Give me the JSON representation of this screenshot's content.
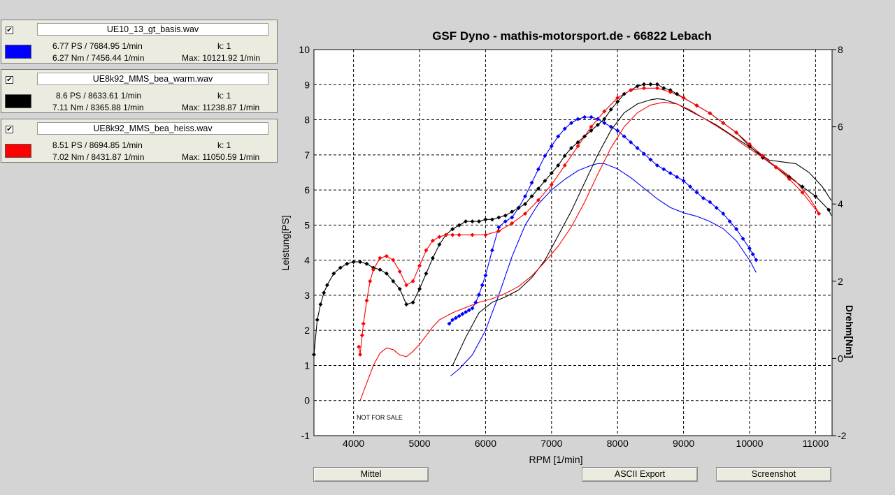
{
  "runs": [
    {
      "checked": true,
      "filename": "UE10_13_gt_basis.wav",
      "color": "#0000ff",
      "power": "6.77 PS / 7684.95 1/min",
      "torque": "6.27 Nm / 7456.44 1/min",
      "k": "k: 1",
      "max": "Max: 10121.92 1/min"
    },
    {
      "checked": true,
      "filename": "UE8k92_MMS_bea_warm.wav",
      "color": "#000000",
      "power": "8.6 PS / 8633.61 1/min",
      "torque": "7.11 Nm / 8365.88 1/min",
      "k": "k: 1",
      "max": "Max: 11238.87 1/min"
    },
    {
      "checked": true,
      "filename": "UE8k92_MMS_bea_heiss.wav",
      "color": "#ff0000",
      "power": "8.51 PS / 8694.85 1/min",
      "torque": "7.02 Nm / 8431.87 1/min",
      "k": "k: 1",
      "max": "Max: 11050.59 1/min"
    }
  ],
  "buttons": {
    "mittel": "Mittel",
    "ascii_export": "ASCII Export",
    "screenshot": "Screenshot"
  },
  "watermark": "NOT FOR SALE",
  "chart_data": {
    "type": "line",
    "title": "GSF Dyno - mathis-motorsport.de - 66822 Lebach",
    "xlabel": "RPM [1/min]",
    "ylabel": "Leistung[PS]",
    "y2label": "Drehm[Nm]",
    "xlim": [
      3400,
      11250
    ],
    "ylim": [
      -1,
      10
    ],
    "y2lim": [
      -2,
      8
    ],
    "x_ticks": [
      4000,
      5000,
      6000,
      7000,
      8000,
      9000,
      10000,
      11000
    ],
    "y_ticks": [
      -1,
      0,
      1,
      2,
      3,
      4,
      5,
      6,
      7,
      8,
      9,
      10
    ],
    "y2_ticks": [
      -2,
      0,
      2,
      4,
      6,
      8
    ],
    "y2_tick_labels": [
      "-2",
      "0",
      "2",
      "4",
      "6",
      "8"
    ],
    "grid": true,
    "series": [
      {
        "name": "UE10_13_gt_basis.wav",
        "quantity": "power",
        "axis": "y",
        "color": "#0000ff",
        "x": [
          5470,
          5600,
          5800,
          6000,
          6200,
          6400,
          6600,
          6800,
          7000,
          7200,
          7400,
          7600,
          7700,
          7800,
          8000,
          8200,
          8400,
          8600,
          8800,
          9000,
          9200,
          9400,
          9600,
          9800,
          10000,
          10100
        ],
        "y": [
          0.7,
          0.9,
          1.3,
          2.0,
          3.0,
          4.1,
          5.0,
          5.6,
          6.0,
          6.3,
          6.55,
          6.7,
          6.75,
          6.75,
          6.6,
          6.35,
          6.05,
          5.75,
          5.5,
          5.35,
          5.25,
          5.1,
          4.9,
          4.55,
          4.0,
          3.65
        ]
      },
      {
        "name": "UE10_13_gt_basis.wav",
        "quantity": "torque",
        "axis": "y2",
        "color": "#0000ff",
        "x": [
          5450,
          5500,
          5550,
          5600,
          5650,
          5700,
          5750,
          5800,
          5850,
          5900,
          5950,
          6000,
          6100,
          6200,
          6300,
          6400,
          6500,
          6600,
          6700,
          6800,
          6900,
          7000,
          7100,
          7200,
          7300,
          7400,
          7500,
          7600,
          7700,
          7800,
          7900,
          8000,
          8100,
          8200,
          8300,
          8400,
          8500,
          8600,
          8700,
          8800,
          8900,
          9000,
          9100,
          9200,
          9300,
          9400,
          9500,
          9600,
          9700,
          9800,
          9900,
          10000,
          10050,
          10100
        ],
        "y": [
          0.9,
          1.0,
          1.05,
          1.1,
          1.15,
          1.2,
          1.25,
          1.3,
          1.45,
          1.65,
          1.9,
          2.15,
          2.8,
          3.4,
          3.55,
          3.65,
          3.9,
          4.2,
          4.55,
          4.9,
          5.25,
          5.5,
          5.75,
          5.95,
          6.1,
          6.2,
          6.25,
          6.25,
          6.2,
          6.1,
          6.0,
          5.9,
          5.75,
          5.6,
          5.45,
          5.3,
          5.15,
          5.0,
          4.9,
          4.8,
          4.7,
          4.6,
          4.45,
          4.3,
          4.15,
          4.05,
          3.9,
          3.75,
          3.55,
          3.35,
          3.1,
          2.85,
          2.7,
          2.55
        ]
      },
      {
        "name": "UE8k92_MMS_bea_warm.wav",
        "quantity": "power",
        "axis": "y",
        "color": "#000000",
        "x": [
          5500,
          5700,
          5900,
          6100,
          6300,
          6500,
          6700,
          6900,
          7100,
          7300,
          7500,
          7700,
          7900,
          8100,
          8300,
          8500,
          8600,
          8700,
          8900,
          9100,
          9300,
          9500,
          9700,
          9900,
          10100,
          10300,
          10500,
          10700,
          10900,
          11100,
          11238
        ],
        "y": [
          1.0,
          1.8,
          2.5,
          2.8,
          2.95,
          3.15,
          3.5,
          4.0,
          4.7,
          5.4,
          6.2,
          7.0,
          7.7,
          8.2,
          8.45,
          8.57,
          8.6,
          8.58,
          8.45,
          8.25,
          8.05,
          7.85,
          7.6,
          7.35,
          7.1,
          6.85,
          6.8,
          6.75,
          6.5,
          6.1,
          5.7
        ]
      },
      {
        "name": "UE8k92_MMS_bea_warm.wav",
        "quantity": "torque",
        "axis": "y2",
        "color": "#000000",
        "x": [
          3400,
          3450,
          3500,
          3550,
          3600,
          3700,
          3800,
          3900,
          4000,
          4100,
          4200,
          4300,
          4400,
          4500,
          4600,
          4700,
          4800,
          4900,
          5000,
          5100,
          5200,
          5300,
          5400,
          5500,
          5600,
          5700,
          5800,
          5900,
          6000,
          6100,
          6200,
          6300,
          6400,
          6500,
          6600,
          6700,
          6800,
          6900,
          7000,
          7100,
          7200,
          7300,
          7400,
          7500,
          7600,
          7700,
          7800,
          7900,
          8000,
          8100,
          8200,
          8300,
          8400,
          8500,
          8600,
          8700,
          8800,
          8900,
          9000,
          9200,
          9400,
          9600,
          9800,
          10000,
          10200,
          10400,
          10600,
          10800,
          11000,
          11200,
          11238
        ],
        "y": [
          0.1,
          1.0,
          1.4,
          1.7,
          1.9,
          2.2,
          2.35,
          2.45,
          2.5,
          2.5,
          2.45,
          2.35,
          2.3,
          2.2,
          2.0,
          1.8,
          1.4,
          1.45,
          1.8,
          2.2,
          2.6,
          2.95,
          3.2,
          3.35,
          3.45,
          3.55,
          3.55,
          3.55,
          3.6,
          3.6,
          3.65,
          3.7,
          3.8,
          3.9,
          4.0,
          4.2,
          4.4,
          4.6,
          4.8,
          5.0,
          5.25,
          5.45,
          5.6,
          5.75,
          5.9,
          6.05,
          6.2,
          6.45,
          6.65,
          6.85,
          6.95,
          7.05,
          7.1,
          7.1,
          7.1,
          7.0,
          6.95,
          6.85,
          6.75,
          6.55,
          6.35,
          6.1,
          5.85,
          5.5,
          5.2,
          4.95,
          4.7,
          4.45,
          4.2,
          3.85,
          3.7
        ]
      },
      {
        "name": "UE8k92_MMS_bea_heiss.wav",
        "quantity": "power",
        "axis": "y",
        "color": "#ff0000",
        "x": [
          4100,
          4200,
          4300,
          4400,
          4500,
          4600,
          4700,
          4800,
          4900,
          5000,
          5100,
          5200,
          5300,
          5500,
          5700,
          5900,
          6100,
          6300,
          6500,
          6700,
          6900,
          7100,
          7300,
          7500,
          7700,
          7900,
          8100,
          8300,
          8500,
          8700,
          8900,
          9100,
          9300,
          9500,
          9700,
          9900,
          10100,
          10300,
          10500,
          10700,
          10900,
          11050
        ],
        "y": [
          0.0,
          0.5,
          1.0,
          1.35,
          1.5,
          1.45,
          1.3,
          1.25,
          1.4,
          1.6,
          1.85,
          2.1,
          2.3,
          2.5,
          2.65,
          2.8,
          2.9,
          3.05,
          3.25,
          3.55,
          3.95,
          4.4,
          4.95,
          5.65,
          6.45,
          7.2,
          7.8,
          8.2,
          8.42,
          8.5,
          8.45,
          8.28,
          8.05,
          7.82,
          7.58,
          7.3,
          7.05,
          6.8,
          6.55,
          6.25,
          5.8,
          5.35
        ]
      },
      {
        "name": "UE8k92_MMS_bea_heiss.wav",
        "quantity": "torque",
        "axis": "y2",
        "color": "#ff0000",
        "x": [
          4080,
          4100,
          4130,
          4150,
          4200,
          4250,
          4300,
          4400,
          4500,
          4600,
          4700,
          4800,
          4900,
          5000,
          5100,
          5200,
          5300,
          5400,
          5500,
          5600,
          5800,
          6000,
          6200,
          6400,
          6600,
          6800,
          7000,
          7200,
          7400,
          7600,
          7800,
          8000,
          8200,
          8400,
          8600,
          8800,
          9000,
          9200,
          9400,
          9600,
          9800,
          10000,
          10200,
          10400,
          10600,
          10800,
          11050
        ],
        "y": [
          0.3,
          0.1,
          0.6,
          0.9,
          1.5,
          2.0,
          2.3,
          2.6,
          2.65,
          2.55,
          2.25,
          1.9,
          2.0,
          2.4,
          2.8,
          3.05,
          3.15,
          3.2,
          3.2,
          3.2,
          3.2,
          3.2,
          3.3,
          3.5,
          3.75,
          4.1,
          4.5,
          5.0,
          5.5,
          6.0,
          6.4,
          6.75,
          6.95,
          7.0,
          7.0,
          6.9,
          6.75,
          6.55,
          6.35,
          6.1,
          5.85,
          5.55,
          5.25,
          4.95,
          4.65,
          4.3,
          3.75
        ]
      }
    ],
    "markers": [
      {
        "series_index": 1,
        "x": [
          5450,
          5500,
          5550,
          5600,
          5650,
          5700,
          5750,
          5800,
          5850,
          5900,
          5950,
          6000,
          6100,
          6200,
          6300,
          6400,
          6500,
          6600,
          6700,
          6800,
          6900,
          7000,
          7100,
          7200,
          7300,
          7400,
          7500,
          7600,
          7700,
          7800,
          7900,
          8000,
          8100,
          8200,
          8300,
          8400,
          8500,
          8600,
          8700,
          8800,
          8900,
          9000,
          9100,
          9200,
          9300,
          9400,
          9500,
          9600,
          9700,
          9800,
          9900,
          10000,
          10050,
          10100
        ]
      },
      {
        "series_index": 3,
        "x": [
          3400,
          3450,
          3500,
          3550,
          3600,
          3700,
          3800,
          3900,
          4000,
          4100,
          4200,
          4300,
          4400,
          4500,
          4600,
          4700,
          4800,
          4900,
          5000,
          5100,
          5200,
          5300,
          5400,
          5500,
          5600,
          5700,
          5800,
          5900,
          6000,
          6100,
          6200,
          6300,
          6400,
          6500,
          6600,
          6700,
          6800,
          6900,
          7000,
          7100,
          7200,
          7300,
          7400,
          7500,
          7600,
          7700,
          7800,
          7900,
          8000,
          8100,
          8200,
          8300,
          8400,
          8500,
          8600,
          8700,
          8800,
          8900,
          9000,
          9200,
          9400,
          9600,
          9800,
          10000,
          10200,
          10400,
          10600,
          10800,
          11000,
          11200
        ]
      },
      {
        "series_index": 5,
        "x": [
          4080,
          4100,
          4130,
          4150,
          4200,
          4250,
          4300,
          4400,
          4500,
          4600,
          4700,
          4800,
          4900,
          5000,
          5100,
          5200,
          5300,
          5400,
          5500,
          5600,
          5800,
          6000,
          6200,
          6400,
          6600,
          6800,
          7000,
          7200,
          7400,
          7600,
          7800,
          8000,
          8200,
          8400,
          8600,
          8800,
          9000,
          9200,
          9400,
          9600,
          9800,
          10000,
          10200,
          10400,
          10600,
          10800,
          11050
        ]
      }
    ]
  }
}
